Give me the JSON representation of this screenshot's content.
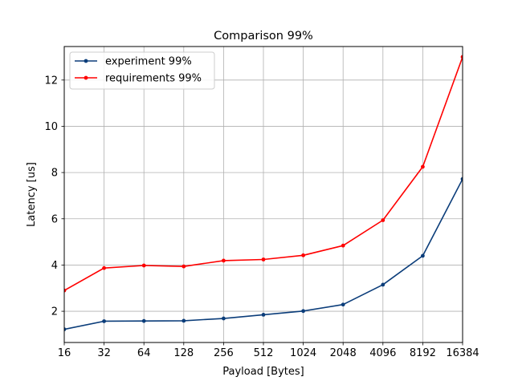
{
  "chart_data": {
    "type": "line",
    "title": "Comparison 99%",
    "xlabel": "Payload [Bytes]",
    "ylabel": "Latency [us]",
    "x_scale": "log2",
    "x": [
      16,
      32,
      64,
      128,
      256,
      512,
      1024,
      2048,
      4096,
      8192,
      16384
    ],
    "x_tick_labels": [
      "16",
      "32",
      "64",
      "128",
      "256",
      "512",
      "1024",
      "2048",
      "4096",
      "8192",
      "16384"
    ],
    "y_ticks": [
      2,
      4,
      6,
      8,
      10,
      12
    ],
    "ylim": [
      0.65,
      13.45
    ],
    "grid": true,
    "legend_position": "top-left",
    "series": [
      {
        "name": "experiment 99%",
        "color": "#0b3d7a",
        "marker": "dot",
        "values": [
          1.22,
          1.57,
          1.58,
          1.59,
          1.69,
          1.85,
          2.01,
          2.29,
          3.15,
          4.4,
          7.72
        ]
      },
      {
        "name": "requirements 99%",
        "color": "#ff0000",
        "marker": "dot",
        "values": [
          2.9,
          3.87,
          3.98,
          3.94,
          4.19,
          4.24,
          4.42,
          4.84,
          5.94,
          8.25,
          13.0
        ]
      }
    ]
  }
}
